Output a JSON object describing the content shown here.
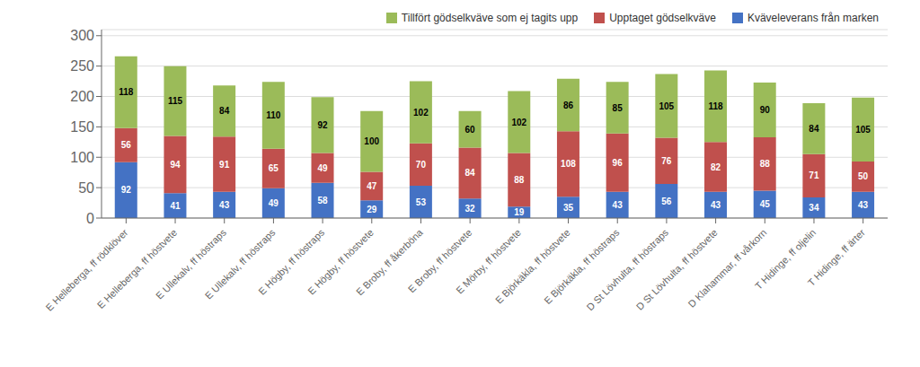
{
  "chart_data": {
    "type": "bar",
    "stacked": true,
    "categories": [
      "E Helleberga, ff rödklöver",
      "E Helleberga, ff höstvete",
      "E Ullekalv, ff höstraps",
      "E Ullekalv, ff höstraps",
      "E Högby, ff höstraps",
      "E Högby, ff höstvete",
      "E Broby, ff åkerböna",
      "E Broby, ff höstvete",
      "E Mörby, ff höstvete",
      "E Björkäkla, ff höstvete",
      "E Björkäkla, ff höstraps",
      "D St Lövhulta, ff höstraps",
      "D St Lövhulta, ff höstvete",
      "D Klahammar, ff vårkorn",
      "T Hidinge, ff oljelin",
      "T Hidinge, ff ärter"
    ],
    "series": [
      {
        "name": "Kväveleverans från marken",
        "color": "#4472C4",
        "values": [
          92,
          41,
          43,
          49,
          58,
          29,
          53,
          32,
          19,
          35,
          43,
          56,
          43,
          45,
          34,
          43
        ]
      },
      {
        "name": "Upptaget gödselkväve",
        "color": "#C0504D",
        "values": [
          56,
          94,
          91,
          65,
          49,
          47,
          70,
          84,
          88,
          108,
          96,
          76,
          82,
          88,
          71,
          50
        ]
      },
      {
        "name": "Tillfört gödselkväve som ej tagits upp",
        "color": "#9BBB59",
        "values": [
          118,
          115,
          84,
          110,
          92,
          100,
          102,
          60,
          102,
          86,
          85,
          105,
          118,
          90,
          84,
          105
        ]
      }
    ],
    "ylim": [
      0,
      310
    ],
    "yticks": [
      0,
      50,
      100,
      150,
      200,
      250,
      300
    ],
    "grid": true,
    "legend": "upper right",
    "data_labels": true
  }
}
